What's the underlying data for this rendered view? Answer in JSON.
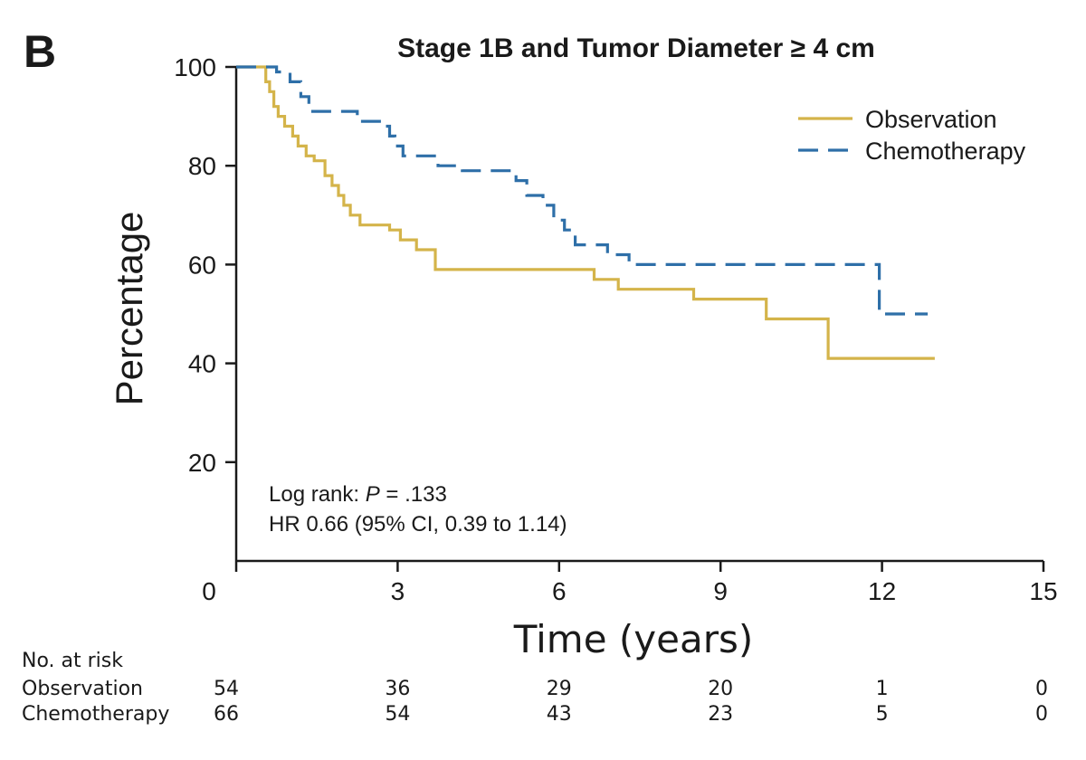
{
  "panel_label": "B",
  "chart_data": {
    "type": "line",
    "subtype": "kaplan-meier",
    "title": "Stage 1B and Tumor Diameter ≥ 4 cm",
    "xlabel": "Time (years)",
    "ylabel": "Percentage",
    "xlim": [
      0,
      15
    ],
    "ylim": [
      0,
      100
    ],
    "xticks": [
      0,
      3,
      6,
      9,
      12,
      15
    ],
    "yticks": [
      20,
      40,
      60,
      80,
      100
    ],
    "legend_position": "top-right",
    "series": [
      {
        "name": "Observation",
        "color": "#d4b44a",
        "line_style": "solid",
        "steps": [
          [
            0,
            100
          ],
          [
            0.45,
            100
          ],
          [
            0.55,
            97
          ],
          [
            0.62,
            95
          ],
          [
            0.7,
            92
          ],
          [
            0.78,
            90
          ],
          [
            0.9,
            88
          ],
          [
            1.05,
            86
          ],
          [
            1.15,
            84
          ],
          [
            1.3,
            82
          ],
          [
            1.45,
            81
          ],
          [
            1.65,
            78
          ],
          [
            1.78,
            76
          ],
          [
            1.9,
            74
          ],
          [
            2.0,
            72
          ],
          [
            2.12,
            70
          ],
          [
            2.3,
            68
          ],
          [
            2.85,
            67
          ],
          [
            3.05,
            65
          ],
          [
            3.35,
            63
          ],
          [
            3.7,
            59
          ],
          [
            6.65,
            57
          ],
          [
            7.1,
            55
          ],
          [
            8.5,
            53
          ],
          [
            9.85,
            49
          ],
          [
            11.0,
            41
          ],
          [
            12.98,
            41
          ]
        ]
      },
      {
        "name": "Chemotherapy",
        "color": "#2e6fa8",
        "line_style": "dashed",
        "steps": [
          [
            0,
            100
          ],
          [
            0.45,
            100
          ],
          [
            0.75,
            99
          ],
          [
            1.0,
            97
          ],
          [
            1.2,
            94
          ],
          [
            1.35,
            91
          ],
          [
            2.25,
            89
          ],
          [
            2.7,
            88
          ],
          [
            2.85,
            86
          ],
          [
            2.95,
            84
          ],
          [
            3.1,
            82
          ],
          [
            3.75,
            80
          ],
          [
            4.2,
            79
          ],
          [
            4.9,
            79
          ],
          [
            5.2,
            77
          ],
          [
            5.4,
            74
          ],
          [
            5.7,
            72
          ],
          [
            5.9,
            69
          ],
          [
            6.1,
            67
          ],
          [
            6.3,
            64
          ],
          [
            6.9,
            62
          ],
          [
            7.3,
            60
          ],
          [
            11.9,
            60
          ],
          [
            11.95,
            50
          ],
          [
            12.85,
            50
          ]
        ]
      }
    ],
    "annotations": [
      {
        "label": "Log rank: ",
        "p_italic": "P",
        "p_rest": " = .133"
      },
      {
        "text": "HR 0.66 (95% CI, 0.39 to 1.14)"
      }
    ],
    "risk_table": {
      "header": "No. at risk",
      "times": [
        0,
        3,
        6,
        9,
        12,
        15
      ],
      "rows": [
        {
          "label": "Observation",
          "values": [
            "54",
            "36",
            "29",
            "20",
            "1",
            "0"
          ]
        },
        {
          "label": "Chemotherapy",
          "values": [
            "66",
            "54",
            "43",
            "23",
            "5",
            "0"
          ]
        }
      ]
    }
  }
}
